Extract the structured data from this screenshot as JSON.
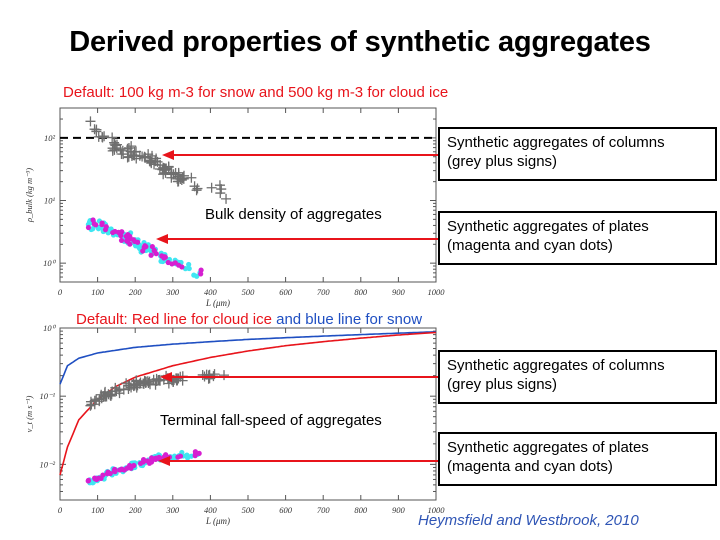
{
  "title": "Derived properties of synthetic aggregates",
  "note_top": "Default: 100 kg m-3 for snow and 500 kg m-3 for cloud ice",
  "note_bottom": {
    "red_part": "Default: Red line for cloud ice",
    "blue_part": "and blue line for snow"
  },
  "callouts": {
    "columns_label": "Synthetic aggregates of columns\n(grey plus signs)",
    "plates_label": "Synthetic aggregates of plates\n(magenta and cyan dots)"
  },
  "callout_lines": {
    "columns_line1": "Synthetic aggregates of columns",
    "columns_line2": "(grey plus signs)",
    "plates_line1": "Synthetic aggregates of plates",
    "plates_line2": "(magenta and cyan dots)"
  },
  "citation": "Heymsfield and Westbrook, 2010",
  "colors": {
    "red": "#e8141b",
    "blue": "#1f4fc2",
    "grey_markers": "#6f6f6f",
    "magenta": "#d61fd0",
    "cyan": "#3fe6f2"
  },
  "chart_data": [
    {
      "type": "scatter",
      "annotation": "Bulk density of aggregates",
      "xlabel": "L (μm)",
      "ylabel": "ρ_bulk (kg m⁻³)",
      "xlim": [
        0,
        1000
      ],
      "ylim": [
        0.5,
        300
      ],
      "yscale": "log",
      "x_ticks": [
        0,
        100,
        200,
        300,
        400,
        500,
        600,
        700,
        800,
        900,
        1000
      ],
      "y_ticks": [
        1,
        10,
        100
      ],
      "y_tick_labels": [
        "10⁰",
        "10¹",
        "10²"
      ],
      "reference_line": {
        "y": 100,
        "style": "dashed",
        "color": "#000000"
      },
      "series": [
        {
          "marker": "plus",
          "color": "#6f6f6f",
          "trend": {
            "x": [
              80,
              150,
              250,
              350,
              450
            ],
            "y": [
              150,
              70,
              40,
              20,
              12
            ]
          },
          "x_range": [
            80,
            470
          ]
        },
        {
          "marker": "dot",
          "color": "#d61fd0",
          "trend": {
            "x": [
              80,
              150,
              250,
              350,
              390
            ],
            "y": [
              4.5,
              3,
              1.5,
              0.8,
              0.6
            ]
          },
          "x_range": [
            75,
            390
          ]
        },
        {
          "marker": "dot",
          "color": "#3fe6f2",
          "trend": {
            "x": [
              80,
              150,
              250,
              350,
              390
            ],
            "y": [
              4.5,
              3,
              1.5,
              0.8,
              0.6
            ]
          },
          "x_range": [
            75,
            390
          ]
        }
      ]
    },
    {
      "type": "scatter",
      "annotation": "Terminal fall-speed of aggregates",
      "xlabel": "L (μm)",
      "ylabel": "v_t (m s⁻¹)",
      "xlim": [
        0,
        1000
      ],
      "ylim": [
        0.003,
        1
      ],
      "yscale": "log",
      "x_ticks": [
        0,
        100,
        200,
        300,
        400,
        500,
        600,
        700,
        800,
        900,
        1000
      ],
      "y_ticks": [
        0.01,
        0.1,
        1
      ],
      "y_tick_labels": [
        "10⁻²",
        "10⁻¹",
        "10⁰"
      ],
      "lines": [
        {
          "name": "",
          "color": "#1f4fc2",
          "x": [
            0,
            20,
            50,
            100,
            200,
            300,
            400,
            500,
            600,
            700,
            800,
            900,
            1000
          ],
          "y": [
            0.15,
            0.28,
            0.36,
            0.43,
            0.52,
            0.58,
            0.63,
            0.68,
            0.72,
            0.76,
            0.8,
            0.84,
            0.88
          ]
        },
        {
          "name": "",
          "color": "#e8141b",
          "x": [
            0,
            20,
            50,
            100,
            150,
            200,
            300,
            400,
            500,
            600,
            700,
            800,
            900,
            1000
          ],
          "y": [
            0.007,
            0.018,
            0.045,
            0.09,
            0.14,
            0.19,
            0.28,
            0.37,
            0.46,
            0.55,
            0.63,
            0.71,
            0.79,
            0.86
          ]
        }
      ],
      "series": [
        {
          "marker": "plus",
          "color": "#6f6f6f",
          "trend": {
            "x": [
              80,
              150,
              250,
              350,
              450
            ],
            "y": [
              0.08,
              0.12,
              0.17,
              0.19,
              0.21
            ]
          },
          "x_range": [
            80,
            460
          ]
        },
        {
          "marker": "dot",
          "color": "#d61fd0",
          "trend": {
            "x": [
              80,
              150,
              250,
              350,
              400
            ],
            "y": [
              0.0055,
              0.008,
              0.012,
              0.014,
              0.015
            ]
          },
          "x_range": [
            75,
            400
          ]
        },
        {
          "marker": "dot",
          "color": "#3fe6f2",
          "trend": {
            "x": [
              80,
              150,
              250,
              350,
              400
            ],
            "y": [
              0.0055,
              0.008,
              0.012,
              0.014,
              0.015
            ]
          },
          "x_range": [
            75,
            400
          ]
        }
      ]
    }
  ]
}
